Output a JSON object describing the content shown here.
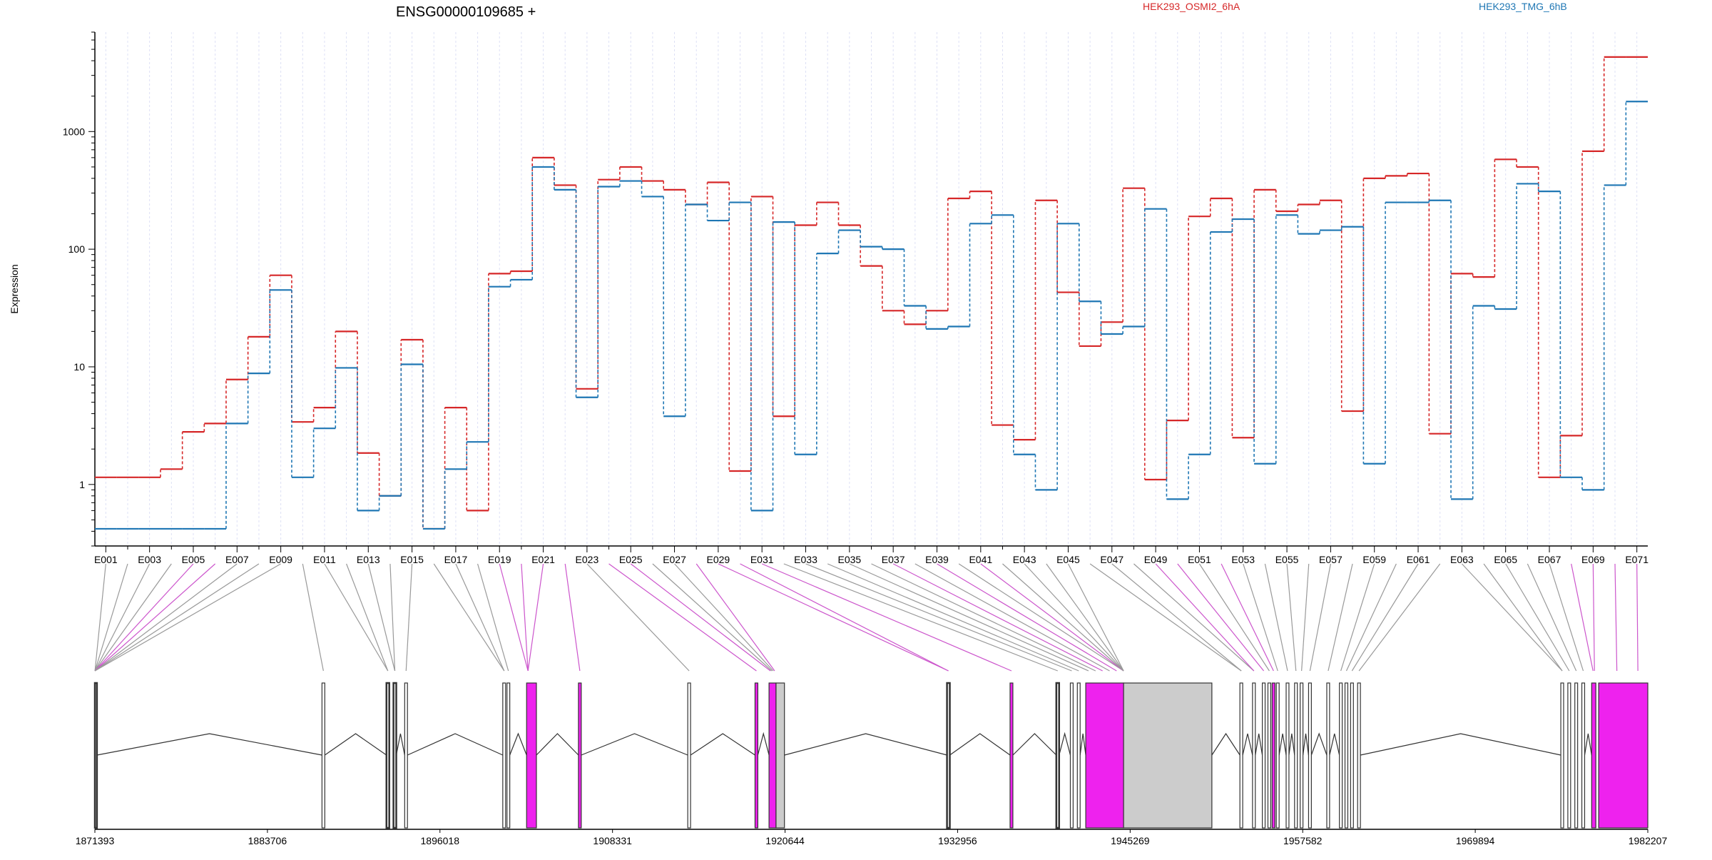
{
  "chart_data": {
    "type": "line",
    "title": "ENSG00000109685 +",
    "ylabel": "Expression",
    "yscale": "log",
    "ylim": [
      0.3,
      7000
    ],
    "yticks": [
      {
        "value": 1,
        "label": "1"
      },
      {
        "value": 10,
        "label": "10"
      },
      {
        "value": 100,
        "label": "100"
      },
      {
        "value": 1000,
        "label": "1000"
      }
    ],
    "categories": [
      "E001",
      "E002",
      "E003",
      "E004",
      "E005",
      "E006",
      "E007",
      "E008",
      "E009",
      "E010",
      "E011",
      "E012",
      "E013",
      "E014",
      "E015",
      "E016",
      "E017",
      "E018",
      "E019",
      "E020",
      "E021",
      "E022",
      "E023",
      "E024",
      "E025",
      "E026",
      "E027",
      "E028",
      "E029",
      "E030",
      "E031",
      "E032",
      "E033",
      "E034",
      "E035",
      "E036",
      "E037",
      "E038",
      "E039",
      "E040",
      "E041",
      "E042",
      "E043",
      "E044",
      "E045",
      "E046",
      "E047",
      "E048",
      "E049",
      "E050",
      "E051",
      "E052",
      "E053",
      "E054",
      "E055",
      "E056",
      "E057",
      "E058",
      "E059",
      "E060",
      "E061",
      "E062",
      "E063",
      "E064",
      "E065",
      "E066",
      "E067",
      "E068",
      "E069",
      "E070",
      "E071"
    ],
    "series": [
      {
        "name": "HEK293_OSMI2_6hA",
        "color": "#d62728",
        "values": [
          1.15,
          1.15,
          1.15,
          1.35,
          2.8,
          3.3,
          7.8,
          18,
          60,
          3.4,
          4.5,
          20,
          1.85,
          0.8,
          17,
          0.42,
          4.5,
          0.6,
          62,
          65,
          600,
          350,
          6.5,
          390,
          500,
          380,
          320,
          240,
          370,
          1.3,
          280,
          3.8,
          160,
          250,
          160,
          72,
          30,
          23,
          30,
          270,
          310,
          3.2,
          2.4,
          260,
          43,
          15,
          24,
          330,
          1.1,
          3.5,
          190,
          270,
          2.5,
          320,
          210,
          240,
          260,
          4.2,
          400,
          420,
          440,
          2.7,
          62,
          58,
          580,
          500,
          1.15,
          2.6,
          680,
          4300,
          4300
        ]
      },
      {
        "name": "HEK293_TMG_6hB",
        "color": "#1f77b4",
        "values": [
          0.42,
          0.42,
          0.42,
          0.42,
          0.42,
          0.42,
          3.3,
          8.8,
          45,
          1.15,
          3,
          9.8,
          0.6,
          0.8,
          10.5,
          0.42,
          1.35,
          2.3,
          48,
          55,
          500,
          320,
          5.5,
          340,
          380,
          280,
          3.8,
          240,
          175,
          250,
          0.6,
          170,
          1.8,
          92,
          145,
          105,
          100,
          33,
          21,
          22,
          165,
          195,
          1.8,
          0.9,
          165,
          36,
          19,
          22,
          220,
          0.75,
          1.8,
          140,
          180,
          1.5,
          195,
          135,
          145,
          155,
          1.5,
          250,
          250,
          260,
          0.75,
          33,
          31,
          360,
          310,
          1.15,
          0.9,
          350,
          1800
        ]
      }
    ],
    "legend": {
      "placement": "top",
      "entries": [
        "HEK293_OSMI2_6hA",
        "HEK293_TMG_6hB"
      ]
    },
    "xtick_labels": [
      "E001",
      "E003",
      "E005",
      "E007",
      "E009",
      "E011",
      "E013",
      "E015",
      "E017",
      "E019",
      "E021",
      "E023",
      "E025",
      "E027",
      "E029",
      "E031",
      "E033",
      "E035",
      "E037",
      "E039",
      "E041",
      "E043",
      "E045",
      "E047",
      "E049",
      "E051",
      "E053",
      "E055",
      "E057",
      "E059",
      "E061",
      "E063",
      "E065",
      "E067",
      "E069",
      "E071"
    ],
    "genomic_axis": {
      "range": [
        1871393,
        1982207
      ],
      "ticks": [
        1871393,
        1883706,
        1896018,
        1908331,
        1920644,
        1932956,
        1945269,
        1957582,
        1969894,
        1982207
      ]
    },
    "gene_model": [
      {
        "start": 1871393,
        "end": 1871540,
        "fill": "#ffffff",
        "emphasis": true
      },
      {
        "start": 1887600,
        "end": 1887800,
        "fill": "#ffffff",
        "emphasis": false
      },
      {
        "start": 1892200,
        "end": 1892400,
        "fill": "#ffffff",
        "emphasis": true
      },
      {
        "start": 1892700,
        "end": 1892900,
        "fill": "#ffffff",
        "emphasis": true
      },
      {
        "start": 1893500,
        "end": 1893700,
        "fill": "#ffffff",
        "emphasis": false
      },
      {
        "start": 1900500,
        "end": 1900700,
        "fill": "#ffffff",
        "emphasis": false
      },
      {
        "start": 1900800,
        "end": 1901000,
        "fill": "#ffffff",
        "emphasis": false
      },
      {
        "start": 1902200,
        "end": 1902900,
        "fill": "#ee22ee",
        "emphasis": false
      },
      {
        "start": 1905900,
        "end": 1906100,
        "fill": "#ee22ee",
        "emphasis": false
      },
      {
        "start": 1913700,
        "end": 1913900,
        "fill": "#ffffff",
        "emphasis": false
      },
      {
        "start": 1918500,
        "end": 1918700,
        "fill": "#ee22ee",
        "emphasis": false
      },
      {
        "start": 1919500,
        "end": 1920000,
        "fill": "#ee22ee",
        "emphasis": false
      },
      {
        "start": 1920000,
        "end": 1920600,
        "fill": "#cccccc",
        "emphasis": false
      },
      {
        "start": 1932200,
        "end": 1932400,
        "fill": "#ffffff",
        "emphasis": true
      },
      {
        "start": 1936700,
        "end": 1936900,
        "fill": "#ee22ee",
        "emphasis": false
      },
      {
        "start": 1940000,
        "end": 1940200,
        "fill": "#ffffff",
        "emphasis": true
      },
      {
        "start": 1941000,
        "end": 1941200,
        "fill": "#ffffff",
        "emphasis": false
      },
      {
        "start": 1941500,
        "end": 1941700,
        "fill": "#ffffff",
        "emphasis": false
      },
      {
        "start": 1942100,
        "end": 1944800,
        "fill": "#ee22ee",
        "emphasis": false
      },
      {
        "start": 1944800,
        "end": 1951100,
        "fill": "#cccccc",
        "emphasis": false
      },
      {
        "start": 1953100,
        "end": 1953300,
        "fill": "#ffffff",
        "emphasis": false
      },
      {
        "start": 1954000,
        "end": 1954200,
        "fill": "#ffffff",
        "emphasis": false
      },
      {
        "start": 1954700,
        "end": 1954900,
        "fill": "#ffffff",
        "emphasis": false
      },
      {
        "start": 1955100,
        "end": 1955300,
        "fill": "#ffffff",
        "emphasis": false
      },
      {
        "start": 1955400,
        "end": 1955600,
        "fill": "#ee22ee",
        "emphasis": false
      },
      {
        "start": 1955700,
        "end": 1955900,
        "fill": "#ffffff",
        "emphasis": false
      },
      {
        "start": 1956400,
        "end": 1956600,
        "fill": "#ffffff",
        "emphasis": false
      },
      {
        "start": 1957000,
        "end": 1957200,
        "fill": "#ffffff",
        "emphasis": false
      },
      {
        "start": 1957400,
        "end": 1957600,
        "fill": "#ffffff",
        "emphasis": false
      },
      {
        "start": 1958000,
        "end": 1958200,
        "fill": "#ffffff",
        "emphasis": false
      },
      {
        "start": 1959300,
        "end": 1959500,
        "fill": "#ffffff",
        "emphasis": false
      },
      {
        "start": 1960200,
        "end": 1960400,
        "fill": "#ffffff",
        "emphasis": false
      },
      {
        "start": 1960600,
        "end": 1960800,
        "fill": "#ffffff",
        "emphasis": false
      },
      {
        "start": 1961000,
        "end": 1961200,
        "fill": "#ffffff",
        "emphasis": false
      },
      {
        "start": 1961500,
        "end": 1961700,
        "fill": "#ffffff",
        "emphasis": false
      },
      {
        "start": 1976000,
        "end": 1976200,
        "fill": "#ffffff",
        "emphasis": false
      },
      {
        "start": 1976500,
        "end": 1976700,
        "fill": "#ffffff",
        "emphasis": false
      },
      {
        "start": 1977000,
        "end": 1977200,
        "fill": "#ffffff",
        "emphasis": false
      },
      {
        "start": 1977500,
        "end": 1977700,
        "fill": "#ffffff",
        "emphasis": false
      },
      {
        "start": 1978200,
        "end": 1978500,
        "fill": "#ee22ee",
        "emphasis": false
      },
      {
        "start": 1978700,
        "end": 1982207,
        "fill": "#ee22ee",
        "emphasis": false
      }
    ],
    "mapping_lines": [
      {
        "bin": "E001",
        "pos": 1871400,
        "color": "#999999"
      },
      {
        "bin": "E002",
        "pos": 1871400,
        "color": "#999999"
      },
      {
        "bin": "E003",
        "pos": 1871400,
        "color": "#999999"
      },
      {
        "bin": "E004",
        "pos": 1871400,
        "color": "#999999"
      },
      {
        "bin": "E005",
        "pos": 1871400,
        "color": "#cc55cc"
      },
      {
        "bin": "E006",
        "pos": 1871400,
        "color": "#cc55cc"
      },
      {
        "bin": "E007",
        "pos": 1871400,
        "color": "#999999"
      },
      {
        "bin": "E008",
        "pos": 1871400,
        "color": "#999999"
      },
      {
        "bin": "E009",
        "pos": 1871400,
        "color": "#999999"
      },
      {
        "bin": "E010",
        "pos": 1887700,
        "color": "#999999"
      },
      {
        "bin": "E011",
        "pos": 1892300,
        "color": "#999999"
      },
      {
        "bin": "E012",
        "pos": 1892300,
        "color": "#999999"
      },
      {
        "bin": "E013",
        "pos": 1892800,
        "color": "#999999"
      },
      {
        "bin": "E014",
        "pos": 1892800,
        "color": "#999999"
      },
      {
        "bin": "E015",
        "pos": 1893600,
        "color": "#999999"
      },
      {
        "bin": "E016",
        "pos": 1900600,
        "color": "#999999"
      },
      {
        "bin": "E017",
        "pos": 1900600,
        "color": "#999999"
      },
      {
        "bin": "E018",
        "pos": 1900900,
        "color": "#999999"
      },
      {
        "bin": "E019",
        "pos": 1902300,
        "color": "#cc55cc"
      },
      {
        "bin": "E020",
        "pos": 1902300,
        "color": "#cc55cc"
      },
      {
        "bin": "E021",
        "pos": 1902300,
        "color": "#cc55cc"
      },
      {
        "bin": "E022",
        "pos": 1906000,
        "color": "#cc55cc"
      },
      {
        "bin": "E023",
        "pos": 1913800,
        "color": "#999999"
      },
      {
        "bin": "E024",
        "pos": 1918600,
        "color": "#cc55cc"
      },
      {
        "bin": "E025",
        "pos": 1919600,
        "color": "#cc55cc"
      },
      {
        "bin": "E026",
        "pos": 1919700,
        "color": "#999999"
      },
      {
        "bin": "E027",
        "pos": 1919800,
        "color": "#999999"
      },
      {
        "bin": "E028",
        "pos": 1919900,
        "color": "#cc55cc"
      },
      {
        "bin": "E029",
        "pos": 1932300,
        "color": "#cc55cc"
      },
      {
        "bin": "E030",
        "pos": 1932300,
        "color": "#cc55cc"
      },
      {
        "bin": "E031",
        "pos": 1936800,
        "color": "#cc55cc"
      },
      {
        "bin": "E032",
        "pos": 1940100,
        "color": "#999999"
      },
      {
        "bin": "E033",
        "pos": 1941100,
        "color": "#999999"
      },
      {
        "bin": "E034",
        "pos": 1941600,
        "color": "#999999"
      },
      {
        "bin": "E035",
        "pos": 1942300,
        "color": "#999999"
      },
      {
        "bin": "E036",
        "pos": 1942800,
        "color": "#999999"
      },
      {
        "bin": "E037",
        "pos": 1943300,
        "color": "#cc55cc"
      },
      {
        "bin": "E038",
        "pos": 1943800,
        "color": "#999999"
      },
      {
        "bin": "E039",
        "pos": 1944300,
        "color": "#cc55cc"
      },
      {
        "bin": "E040",
        "pos": 1944800,
        "color": "#999999"
      },
      {
        "bin": "E041",
        "pos": 1944800,
        "color": "#cc55cc"
      },
      {
        "bin": "E042",
        "pos": 1944800,
        "color": "#999999"
      },
      {
        "bin": "E043",
        "pos": 1944800,
        "color": "#999999"
      },
      {
        "bin": "E044",
        "pos": 1944800,
        "color": "#999999"
      },
      {
        "bin": "E045",
        "pos": 1944800,
        "color": "#999999"
      },
      {
        "bin": "E046",
        "pos": 1953200,
        "color": "#999999"
      },
      {
        "bin": "E047",
        "pos": 1953200,
        "color": "#999999"
      },
      {
        "bin": "E048",
        "pos": 1954100,
        "color": "#999999"
      },
      {
        "bin": "E049",
        "pos": 1954100,
        "color": "#cc55cc"
      },
      {
        "bin": "E050",
        "pos": 1954800,
        "color": "#cc55cc"
      },
      {
        "bin": "E051",
        "pos": 1955200,
        "color": "#999999"
      },
      {
        "bin": "E052",
        "pos": 1955500,
        "color": "#cc55cc"
      },
      {
        "bin": "E053",
        "pos": 1955800,
        "color": "#999999"
      },
      {
        "bin": "E054",
        "pos": 1956500,
        "color": "#999999"
      },
      {
        "bin": "E055",
        "pos": 1957100,
        "color": "#999999"
      },
      {
        "bin": "E056",
        "pos": 1957500,
        "color": "#999999"
      },
      {
        "bin": "E057",
        "pos": 1958100,
        "color": "#999999"
      },
      {
        "bin": "E058",
        "pos": 1959400,
        "color": "#999999"
      },
      {
        "bin": "E059",
        "pos": 1960300,
        "color": "#999999"
      },
      {
        "bin": "E060",
        "pos": 1960700,
        "color": "#999999"
      },
      {
        "bin": "E061",
        "pos": 1961100,
        "color": "#999999"
      },
      {
        "bin": "E062",
        "pos": 1961600,
        "color": "#999999"
      },
      {
        "bin": "E063",
        "pos": 1976100,
        "color": "#999999"
      },
      {
        "bin": "E064",
        "pos": 1976100,
        "color": "#999999"
      },
      {
        "bin": "E065",
        "pos": 1976600,
        "color": "#999999"
      },
      {
        "bin": "E066",
        "pos": 1977100,
        "color": "#999999"
      },
      {
        "bin": "E067",
        "pos": 1977600,
        "color": "#999999"
      },
      {
        "bin": "E068",
        "pos": 1978300,
        "color": "#cc55cc"
      },
      {
        "bin": "E069",
        "pos": 1978400,
        "color": "#cc55cc"
      },
      {
        "bin": "E070",
        "pos": 1980000,
        "color": "#cc55cc"
      },
      {
        "bin": "E071",
        "pos": 1981500,
        "color": "#cc55cc"
      }
    ]
  }
}
